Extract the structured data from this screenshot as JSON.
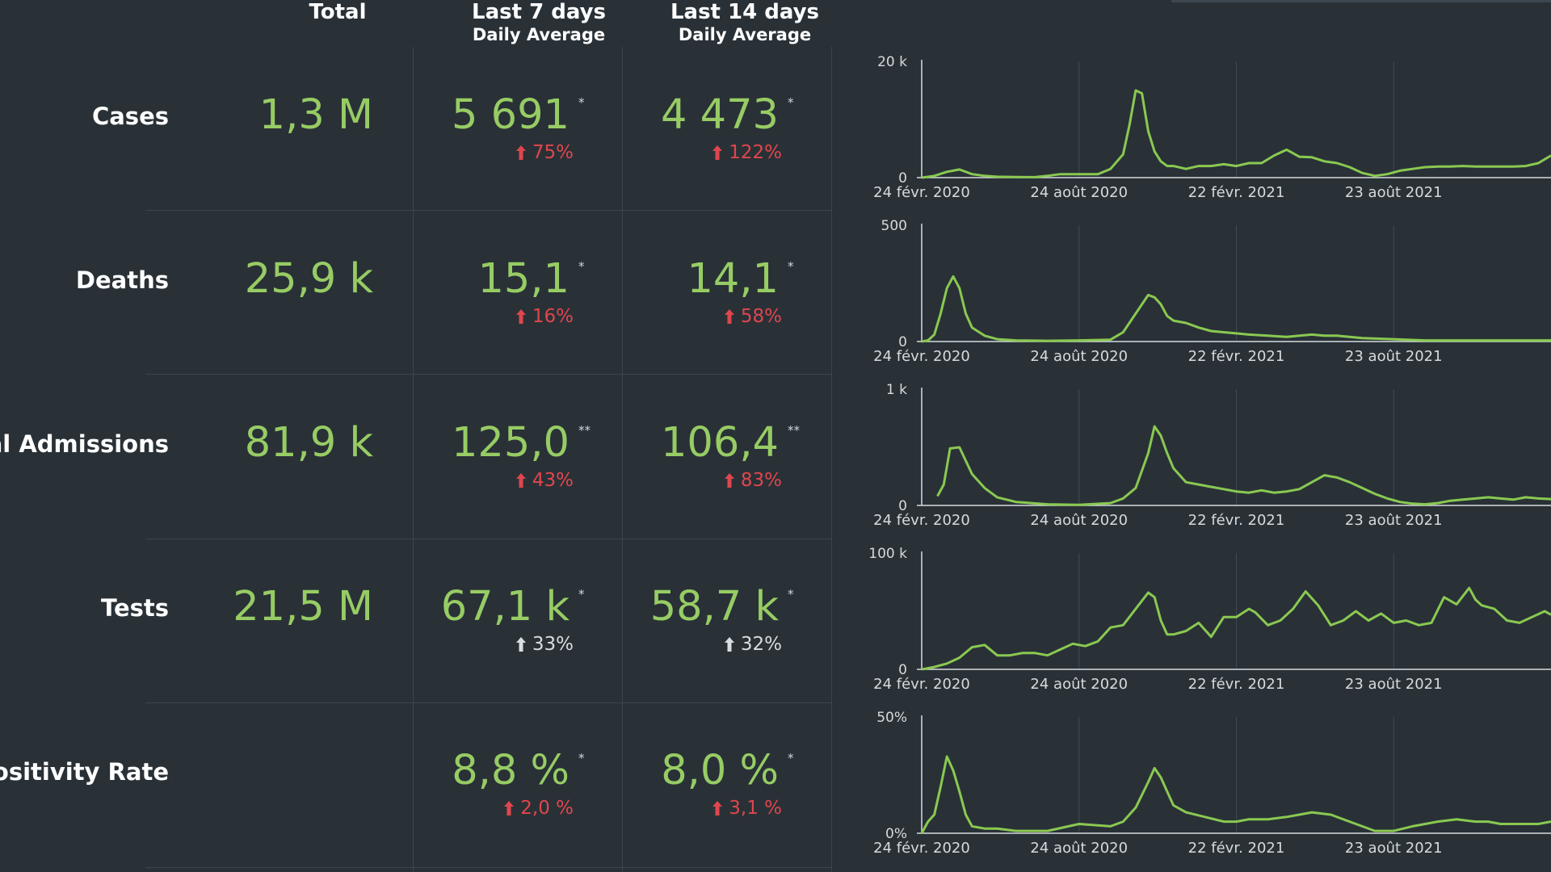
{
  "headers": {
    "total": "Total",
    "last7_main": "Last 7 days",
    "last7_sub": "Daily Average",
    "last14_main": "Last 14 days",
    "last14_sub": "Daily Average"
  },
  "colors": {
    "value_green": "#97cc64",
    "increase_red": "#e0464d",
    "increase_gray": "#d8dde0",
    "line_green": "#8ac951"
  },
  "rows": [
    {
      "label": "Cases",
      "total": "1,3 M",
      "avg7": "5 691",
      "avg7_note": "*",
      "pct7": "75%",
      "avg14": "4 473",
      "avg14_note": "*",
      "pct14": "122%",
      "trend": "up-red"
    },
    {
      "label": "Deaths",
      "total": "25,9 k",
      "avg7": "15,1",
      "avg7_note": "*",
      "pct7": "16%",
      "avg14": "14,1",
      "avg14_note": "*",
      "pct14": "58%",
      "trend": "up-red"
    },
    {
      "label": "pital Admissions",
      "total": "81,9 k",
      "avg7": "125,0",
      "avg7_note": "**",
      "pct7": "43%",
      "avg14": "106,4",
      "avg14_note": "**",
      "pct14": "83%",
      "trend": "up-red"
    },
    {
      "label": "Tests",
      "total": "21,5 M",
      "avg7": "67,1 k",
      "avg7_note": "*",
      "pct7": "33%",
      "avg14": "58,7 k",
      "avg14_note": "*",
      "pct14": "32%",
      "trend": "up-gray"
    },
    {
      "label": "Positivity Rate",
      "total": "",
      "avg7": "8,8 %",
      "avg7_note": "*",
      "pct7": "2,0 %",
      "avg14": "8,0 %",
      "avg14_note": "*",
      "pct14": "3,1 %",
      "trend": "up-red"
    }
  ],
  "chart_data": [
    {
      "type": "line",
      "name": "Cases",
      "x_ticks": [
        "24 févr. 2020",
        "24 août 2020",
        "22 févr. 2021",
        "23 août 2021"
      ],
      "y_ticks": [
        "0",
        "20 k"
      ],
      "ylim": [
        0,
        20000
      ],
      "x": [
        0,
        0.02,
        0.04,
        0.06,
        0.08,
        0.1,
        0.12,
        0.15,
        0.18,
        0.2,
        0.22,
        0.25,
        0.28,
        0.3,
        0.32,
        0.33,
        0.34,
        0.35,
        0.36,
        0.37,
        0.38,
        0.39,
        0.4,
        0.42,
        0.44,
        0.46,
        0.48,
        0.5,
        0.52,
        0.54,
        0.56,
        0.58,
        0.6,
        0.62,
        0.64,
        0.66,
        0.68,
        0.7,
        0.72,
        0.74,
        0.76,
        0.78,
        0.8,
        0.82,
        0.84,
        0.86,
        0.88,
        0.9,
        0.92,
        0.94,
        0.96,
        0.98,
        1.0
      ],
      "values": [
        0,
        300,
        1000,
        1400,
        600,
        300,
        150,
        100,
        80,
        300,
        600,
        600,
        600,
        1500,
        4000,
        9000,
        15000,
        14500,
        8000,
        4500,
        2800,
        2000,
        2000,
        1500,
        2000,
        2000,
        2300,
        2000,
        2500,
        2500,
        3800,
        4800,
        3600,
        3500,
        2800,
        2500,
        1800,
        800,
        300,
        600,
        1200,
        1500,
        1800,
        1900,
        1900,
        2000,
        1900,
        1900,
        1900,
        1900,
        2000,
        2500,
        3800
      ]
    },
    {
      "type": "line",
      "name": "Deaths",
      "x_ticks": [
        "24 févr. 2020",
        "24 août 2020",
        "22 févr. 2021",
        "23 août 2021"
      ],
      "y_ticks": [
        "0",
        "500"
      ],
      "ylim": [
        0,
        500
      ],
      "x": [
        0,
        0.01,
        0.02,
        0.03,
        0.04,
        0.05,
        0.06,
        0.07,
        0.08,
        0.1,
        0.12,
        0.15,
        0.2,
        0.25,
        0.3,
        0.32,
        0.34,
        0.36,
        0.37,
        0.38,
        0.39,
        0.4,
        0.42,
        0.44,
        0.46,
        0.48,
        0.5,
        0.52,
        0.55,
        0.58,
        0.6,
        0.62,
        0.64,
        0.66,
        0.68,
        0.7,
        0.75,
        0.8,
        0.85,
        0.9,
        0.95,
        1.0
      ],
      "values": [
        0,
        5,
        30,
        120,
        230,
        280,
        230,
        120,
        60,
        25,
        10,
        5,
        3,
        5,
        8,
        40,
        120,
        200,
        190,
        160,
        110,
        90,
        80,
        60,
        45,
        40,
        35,
        30,
        25,
        20,
        25,
        30,
        25,
        25,
        20,
        15,
        10,
        5,
        5,
        5,
        5,
        5
      ]
    },
    {
      "type": "line",
      "name": "Hospital Admissions",
      "x_ticks": [
        "24 févr. 2020",
        "24 août 2020",
        "22 févr. 2021",
        "23 août 2021"
      ],
      "y_ticks": [
        "0",
        "1 k"
      ],
      "ylim": [
        0,
        1000
      ],
      "x": [
        0.025,
        0.035,
        0.045,
        0.06,
        0.08,
        0.1,
        0.12,
        0.15,
        0.2,
        0.25,
        0.3,
        0.32,
        0.34,
        0.36,
        0.37,
        0.38,
        0.39,
        0.4,
        0.42,
        0.44,
        0.46,
        0.48,
        0.5,
        0.52,
        0.54,
        0.56,
        0.58,
        0.6,
        0.62,
        0.64,
        0.66,
        0.68,
        0.7,
        0.72,
        0.74,
        0.76,
        0.78,
        0.8,
        0.82,
        0.84,
        0.86,
        0.88,
        0.9,
        0.92,
        0.94,
        0.96,
        0.98,
        1.0
      ],
      "values": [
        80,
        180,
        490,
        500,
        270,
        150,
        70,
        30,
        10,
        5,
        20,
        60,
        150,
        450,
        680,
        600,
        450,
        320,
        200,
        180,
        160,
        140,
        120,
        110,
        130,
        110,
        120,
        140,
        200,
        260,
        240,
        200,
        150,
        100,
        60,
        30,
        15,
        10,
        20,
        40,
        50,
        60,
        70,
        60,
        50,
        70,
        60,
        55
      ]
    },
    {
      "type": "line",
      "name": "Tests",
      "x_ticks": [
        "24 févr. 2020",
        "24 août 2020",
        "22 févr. 2021",
        "23 août 2021"
      ],
      "y_ticks": [
        "0",
        "100 k"
      ],
      "ylim": [
        0,
        100000
      ],
      "x": [
        0,
        0.02,
        0.04,
        0.06,
        0.08,
        0.1,
        0.12,
        0.14,
        0.16,
        0.18,
        0.2,
        0.22,
        0.24,
        0.26,
        0.28,
        0.3,
        0.32,
        0.34,
        0.36,
        0.37,
        0.38,
        0.39,
        0.4,
        0.42,
        0.44,
        0.46,
        0.48,
        0.5,
        0.52,
        0.53,
        0.55,
        0.57,
        0.59,
        0.61,
        0.63,
        0.65,
        0.67,
        0.69,
        0.71,
        0.73,
        0.75,
        0.77,
        0.79,
        0.81,
        0.83,
        0.85,
        0.87,
        0.88,
        0.89,
        0.91,
        0.93,
        0.95,
        0.97,
        0.99,
        1.0
      ],
      "values": [
        0,
        2000,
        5000,
        10000,
        19000,
        21000,
        12000,
        12000,
        14000,
        14000,
        12000,
        17000,
        22000,
        20000,
        24000,
        36000,
        38000,
        52000,
        66000,
        62000,
        42000,
        30000,
        30000,
        33000,
        40000,
        28000,
        45000,
        45000,
        52000,
        49000,
        38000,
        42000,
        52000,
        67000,
        55000,
        38000,
        42000,
        50000,
        42000,
        48000,
        40000,
        42000,
        38000,
        40000,
        62000,
        56000,
        70000,
        60000,
        55000,
        52000,
        42000,
        40000,
        45000,
        50000,
        47000
      ]
    },
    {
      "type": "line",
      "name": "Positivity Rate",
      "x_ticks": [
        "24 févr. 2020",
        "24 août 2020",
        "22 févr. 2021",
        "23 août 2021"
      ],
      "y_ticks": [
        "0%",
        "50%"
      ],
      "ylim": [
        0,
        50
      ],
      "x": [
        0,
        0.01,
        0.02,
        0.03,
        0.04,
        0.05,
        0.06,
        0.07,
        0.08,
        0.1,
        0.12,
        0.15,
        0.2,
        0.25,
        0.3,
        0.32,
        0.34,
        0.36,
        0.37,
        0.38,
        0.39,
        0.4,
        0.42,
        0.45,
        0.48,
        0.5,
        0.52,
        0.55,
        0.58,
        0.6,
        0.62,
        0.65,
        0.68,
        0.7,
        0.72,
        0.75,
        0.78,
        0.8,
        0.82,
        0.85,
        0.88,
        0.9,
        0.92,
        0.95,
        0.98,
        1.0
      ],
      "values": [
        0,
        5,
        8,
        20,
        33,
        27,
        18,
        8,
        3,
        2,
        2,
        1,
        1,
        4,
        3,
        5,
        11,
        22,
        28,
        24,
        18,
        12,
        9,
        7,
        5,
        5,
        6,
        6,
        7,
        8,
        9,
        8,
        5,
        3,
        1,
        1,
        3,
        4,
        5,
        6,
        5,
        5,
        4,
        4,
        4,
        5
      ]
    }
  ]
}
